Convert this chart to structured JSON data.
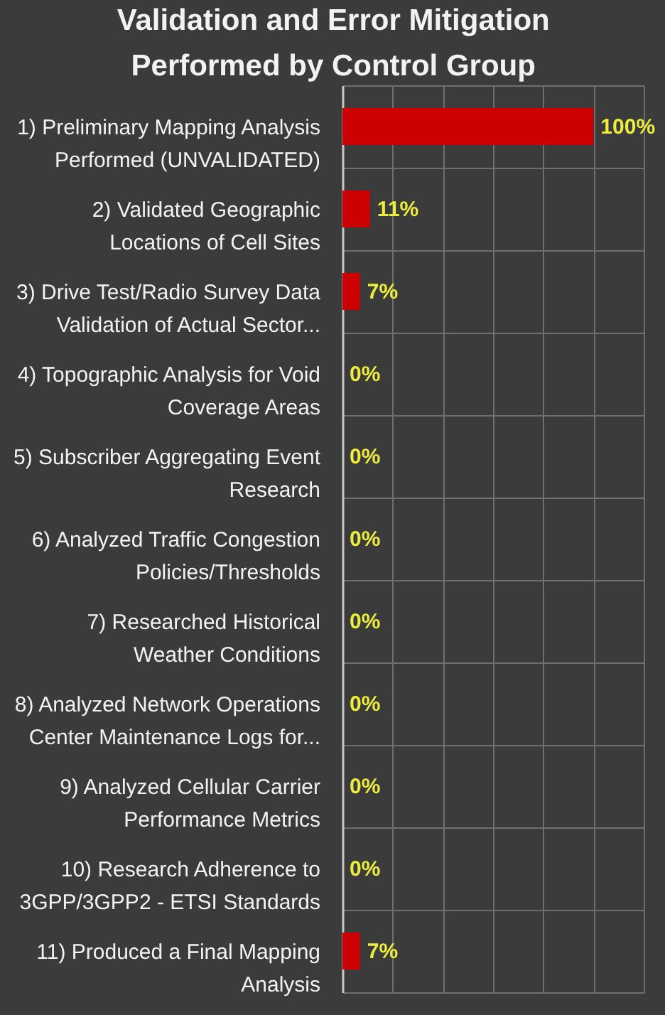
{
  "chart_data": {
    "type": "bar",
    "orientation": "horizontal",
    "title": "Validation and Error Mitigation Performed by Control Group",
    "categories": [
      "1) Preliminary Mapping Analysis Performed (UNVALIDATED)",
      "2) Validated Geographic Locations of Cell Sites",
      "3) Drive Test/Radio Survey Data Validation of Actual Sector...",
      "4) Topographic Analysis for Void Coverage Areas",
      "5) Subscriber Aggregating Event Research",
      "6) Analyzed Traffic Congestion Policies/Thresholds",
      "7) Researched Historical Weather Conditions",
      "8) Analyzed Network Operations Center Maintenance Logs for...",
      "9) Analyzed Cellular Carrier Performance Metrics",
      "10) Research Adherence to 3GPP/3GPP2 - ETSI Standards",
      "11) Produced a Final Mapping Analysis"
    ],
    "values": [
      100,
      11,
      7,
      0,
      0,
      0,
      0,
      0,
      0,
      0,
      7
    ],
    "value_labels": [
      "100%",
      "11%",
      "7%",
      "0%",
      "0%",
      "0%",
      "0%",
      "0%",
      "0%",
      "0%",
      "7%"
    ],
    "color": "#cc0000",
    "xlim": [
      0,
      120
    ],
    "xticks": [
      {
        "value": 0,
        "label": null
      },
      {
        "value": 20,
        "label": null
      },
      {
        "value": 40,
        "label": null
      },
      {
        "value": 60,
        "label": null
      },
      {
        "value": 80,
        "label": null
      },
      {
        "value": 100,
        "label": null
      },
      {
        "value": 120,
        "label": null
      }
    ],
    "tick_labels": "y",
    "grid": true
  }
}
